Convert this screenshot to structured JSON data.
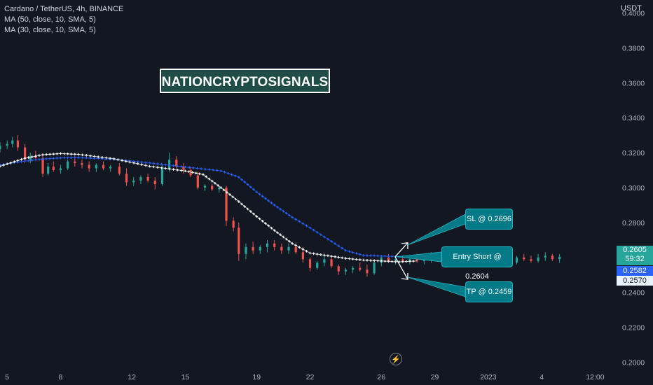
{
  "legend": {
    "symbol": "Cardano / TetherUS, 4h, BINANCE",
    "ma1": "MA (50, close, 10, SMA, 5)",
    "ma2": "MA (30, close, 10, SMA, 5)"
  },
  "watermark": "NATIONCRYPTOSIGNALS",
  "callouts": {
    "sl": "SL @ 0.2696",
    "entry": "Entry Short @ 0.2604",
    "tp": "TP @ 0.2459"
  },
  "price_scale": {
    "currency": "USDT",
    "current_price": "0.2605",
    "countdown": "59:32",
    "ma_blue_value": "0.2582",
    "ma_white_value": "0.2570"
  },
  "lightning_icon": "lightning-icon",
  "colors": {
    "background": "#131722",
    "up_candle": "#26a69a",
    "down_candle": "#ef5350",
    "ma_blue": "#2962ff",
    "ma_white": "#ffffff",
    "callout_bg": "#007a87"
  },
  "chart_data": {
    "type": "candlestick",
    "title": "Cardano / TetherUS, 4h, BINANCE",
    "xlabel": "",
    "ylabel": "",
    "ylim": [
      0.195,
      0.405
    ],
    "y_ticks": [
      "0.4000",
      "0.3800",
      "0.3600",
      "0.3400",
      "0.3200",
      "0.3000",
      "0.2800",
      "0.2600",
      "0.2400",
      "0.2200",
      "0.2000"
    ],
    "y_tick_values": [
      0.4,
      0.38,
      0.36,
      0.34,
      0.32,
      0.3,
      0.28,
      0.26,
      0.24,
      0.22,
      0.2
    ],
    "x_ticks": [
      "5",
      "8",
      "12",
      "15",
      "19",
      "22",
      "26",
      "29",
      "2023",
      "4",
      "12:00"
    ],
    "x_tick_positions": [
      0,
      3,
      7,
      10,
      14,
      17,
      21,
      24,
      27,
      30,
      33
    ],
    "x_range": [
      -0.4,
      34.2
    ],
    "x_unit": "days",
    "series": [
      {
        "name": "MA (50, close, 10, SMA, 5)",
        "color": "#2962ff",
        "x": [
          -0.4,
          1,
          2,
          3,
          4,
          6,
          8,
          10,
          12,
          13,
          14,
          15,
          16,
          17,
          18,
          19,
          20,
          21,
          22,
          23
        ],
        "values": [
          0.313,
          0.3152,
          0.3163,
          0.317,
          0.3172,
          0.3162,
          0.3141,
          0.3118,
          0.3096,
          0.306,
          0.2975,
          0.29,
          0.283,
          0.277,
          0.2705,
          0.264,
          0.2612,
          0.2608,
          0.2605,
          0.2605
        ]
      },
      {
        "name": "MA (30, close, 10, SMA, 5)",
        "color": "#ffffff",
        "x": [
          -0.4,
          1,
          2,
          3,
          4,
          6,
          8,
          10,
          11,
          12,
          13,
          14,
          15,
          16,
          17,
          18,
          19,
          20,
          21,
          22,
          23
        ],
        "values": [
          0.3122,
          0.3168,
          0.3188,
          0.3195,
          0.319,
          0.3165,
          0.3122,
          0.3095,
          0.3075,
          0.3,
          0.292,
          0.2835,
          0.2755,
          0.268,
          0.2625,
          0.261,
          0.2595,
          0.2585,
          0.258,
          0.2575,
          0.258
        ]
      }
    ],
    "candles": [
      [
        -0.4,
        0.322,
        0.326,
        0.32,
        0.324
      ],
      [
        0.0,
        0.324,
        0.327,
        0.322,
        0.325
      ],
      [
        0.3,
        0.325,
        0.329,
        0.323,
        0.327
      ],
      [
        0.6,
        0.327,
        0.33,
        0.321,
        0.323
      ],
      [
        1.0,
        0.323,
        0.325,
        0.314,
        0.316
      ],
      [
        1.3,
        0.316,
        0.32,
        0.314,
        0.318
      ],
      [
        1.6,
        0.318,
        0.321,
        0.316,
        0.317
      ],
      [
        2.0,
        0.317,
        0.319,
        0.306,
        0.308
      ],
      [
        2.3,
        0.308,
        0.314,
        0.307,
        0.312
      ],
      [
        2.6,
        0.312,
        0.315,
        0.309,
        0.31
      ],
      [
        3.0,
        0.31,
        0.313,
        0.308,
        0.311
      ],
      [
        3.4,
        0.311,
        0.316,
        0.31,
        0.315
      ],
      [
        3.8,
        0.315,
        0.318,
        0.312,
        0.314
      ],
      [
        4.2,
        0.314,
        0.316,
        0.311,
        0.313
      ],
      [
        4.6,
        0.313,
        0.315,
        0.309,
        0.311
      ],
      [
        5.0,
        0.311,
        0.314,
        0.309,
        0.313
      ],
      [
        5.4,
        0.313,
        0.315,
        0.31,
        0.311
      ],
      [
        5.8,
        0.311,
        0.313,
        0.309,
        0.312
      ],
      [
        6.3,
        0.312,
        0.314,
        0.307,
        0.308
      ],
      [
        6.7,
        0.308,
        0.311,
        0.301,
        0.303
      ],
      [
        7.1,
        0.303,
        0.306,
        0.301,
        0.304
      ],
      [
        7.5,
        0.304,
        0.307,
        0.302,
        0.306
      ],
      [
        7.9,
        0.306,
        0.308,
        0.303,
        0.304
      ],
      [
        8.3,
        0.304,
        0.306,
        0.299,
        0.302
      ],
      [
        8.7,
        0.302,
        0.313,
        0.301,
        0.311
      ],
      [
        9.1,
        0.311,
        0.32,
        0.309,
        0.316
      ],
      [
        9.5,
        0.316,
        0.318,
        0.311,
        0.312
      ],
      [
        9.9,
        0.312,
        0.314,
        0.308,
        0.31
      ],
      [
        10.3,
        0.31,
        0.312,
        0.306,
        0.307
      ],
      [
        10.7,
        0.307,
        0.309,
        0.299,
        0.3
      ],
      [
        11.1,
        0.3,
        0.302,
        0.298,
        0.301
      ],
      [
        11.5,
        0.301,
        0.302,
        0.298,
        0.299
      ],
      [
        11.9,
        0.299,
        0.301,
        0.297,
        0.3
      ],
      [
        12.3,
        0.3,
        0.301,
        0.278,
        0.281
      ],
      [
        12.7,
        0.281,
        0.283,
        0.275,
        0.277
      ],
      [
        13.0,
        0.277,
        0.28,
        0.258,
        0.262
      ],
      [
        13.4,
        0.262,
        0.268,
        0.259,
        0.266
      ],
      [
        13.8,
        0.266,
        0.269,
        0.262,
        0.264
      ],
      [
        14.2,
        0.264,
        0.267,
        0.262,
        0.266
      ],
      [
        14.6,
        0.266,
        0.27,
        0.263,
        0.268
      ],
      [
        15.0,
        0.268,
        0.27,
        0.264,
        0.266
      ],
      [
        15.4,
        0.266,
        0.268,
        0.262,
        0.264
      ],
      [
        15.8,
        0.264,
        0.268,
        0.262,
        0.266
      ],
      [
        16.2,
        0.266,
        0.268,
        0.262,
        0.263
      ],
      [
        16.6,
        0.263,
        0.266,
        0.257,
        0.259
      ],
      [
        17.0,
        0.259,
        0.26,
        0.252,
        0.254
      ],
      [
        17.4,
        0.254,
        0.258,
        0.253,
        0.257
      ],
      [
        17.8,
        0.257,
        0.261,
        0.255,
        0.259
      ],
      [
        18.2,
        0.259,
        0.26,
        0.254,
        0.255
      ],
      [
        18.6,
        0.255,
        0.256,
        0.25,
        0.252
      ],
      [
        19.0,
        0.252,
        0.254,
        0.25,
        0.253
      ],
      [
        19.4,
        0.253,
        0.255,
        0.251,
        0.254
      ],
      [
        19.8,
        0.254,
        0.257,
        0.252,
        0.253
      ],
      [
        20.2,
        0.253,
        0.256,
        0.249,
        0.251
      ],
      [
        20.6,
        0.251,
        0.259,
        0.25,
        0.257
      ],
      [
        21.0,
        0.257,
        0.261,
        0.255,
        0.26
      ],
      [
        21.4,
        0.26,
        0.262,
        0.257,
        0.258
      ],
      [
        21.8,
        0.258,
        0.261,
        0.256,
        0.259
      ],
      [
        22.2,
        0.259,
        0.261,
        0.257,
        0.258
      ],
      [
        22.6,
        0.258,
        0.26,
        0.256,
        0.259
      ],
      [
        23.0,
        0.259,
        0.262,
        0.257,
        0.258
      ],
      [
        23.4,
        0.258,
        0.261,
        0.256,
        0.259
      ],
      [
        23.8,
        0.259,
        0.263,
        0.257,
        0.26
      ],
      [
        24.2,
        0.26,
        0.263,
        0.258,
        0.259
      ],
      [
        24.6,
        0.259,
        0.262,
        0.258,
        0.261
      ],
      [
        25.0,
        0.261,
        0.262,
        0.258,
        0.259
      ],
      [
        25.4,
        0.259,
        0.261,
        0.257,
        0.26
      ],
      [
        25.8,
        0.26,
        0.262,
        0.256,
        0.258
      ],
      [
        26.2,
        0.258,
        0.26,
        0.256,
        0.257
      ],
      [
        26.6,
        0.257,
        0.261,
        0.256,
        0.26
      ],
      [
        27.0,
        0.26,
        0.262,
        0.257,
        0.258
      ],
      [
        27.4,
        0.258,
        0.261,
        0.256,
        0.26
      ],
      [
        27.8,
        0.26,
        0.262,
        0.257,
        0.258
      ],
      [
        28.2,
        0.258,
        0.26,
        0.256,
        0.257
      ],
      [
        28.6,
        0.257,
        0.261,
        0.256,
        0.26
      ],
      [
        29.0,
        0.26,
        0.262,
        0.258,
        0.259
      ],
      [
        29.4,
        0.259,
        0.261,
        0.257,
        0.258
      ],
      [
        29.8,
        0.258,
        0.262,
        0.257,
        0.26
      ],
      [
        30.2,
        0.26,
        0.263,
        0.258,
        0.261
      ],
      [
        30.6,
        0.261,
        0.262,
        0.258,
        0.259
      ],
      [
        31.0,
        0.259,
        0.262,
        0.257,
        0.2604
      ]
    ],
    "candle_fields": [
      "x",
      "open",
      "high",
      "low",
      "close"
    ],
    "annotations": [
      {
        "label": "SL @ 0.2696",
        "price": 0.2696
      },
      {
        "label": "Entry Short @ 0.2604",
        "price": 0.2604
      },
      {
        "label": "TP @ 0.2459",
        "price": 0.2459
      }
    ],
    "grid": false,
    "legend_position": "top-left"
  }
}
